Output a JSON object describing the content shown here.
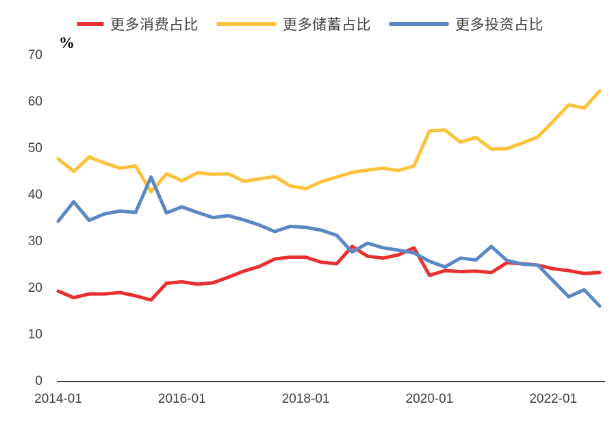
{
  "chart_data": {
    "type": "line",
    "title": "",
    "unit_label": "%",
    "legend_position": "top",
    "grid": false,
    "ylim": [
      0,
      70
    ],
    "y_ticks": [
      0,
      10,
      20,
      30,
      40,
      50,
      60,
      70
    ],
    "x_tick_labels": [
      "2014-01",
      "2016-01",
      "2018-01",
      "2020-01",
      "2022-01"
    ],
    "x_tick_indices": [
      0,
      8,
      16,
      24,
      32
    ],
    "x": [
      "2014-01",
      "2014-04",
      "2014-07",
      "2014-10",
      "2015-01",
      "2015-04",
      "2015-07",
      "2015-10",
      "2016-01",
      "2016-04",
      "2016-07",
      "2016-10",
      "2017-01",
      "2017-04",
      "2017-07",
      "2017-10",
      "2018-01",
      "2018-04",
      "2018-07",
      "2018-10",
      "2019-01",
      "2019-04",
      "2019-07",
      "2019-10",
      "2020-01",
      "2020-04",
      "2020-07",
      "2020-10",
      "2021-01",
      "2021-04",
      "2021-07",
      "2021-10",
      "2022-01",
      "2022-04",
      "2022-07",
      "2022-10"
    ],
    "series": [
      {
        "name": "更多消费占比",
        "color": "#e93030",
        "values": [
          19.4,
          18.0,
          18.8,
          18.8,
          19.1,
          18.4,
          17.5,
          21.1,
          21.4,
          20.9,
          21.2,
          22.4,
          23.7,
          24.7,
          26.3,
          26.7,
          26.7,
          25.6,
          25.3,
          29.0,
          26.9,
          26.5,
          27.2,
          28.7,
          22.8,
          23.8,
          23.6,
          23.7,
          23.4,
          25.5,
          25.3,
          25.0,
          24.2,
          23.8,
          23.2,
          23.4
        ]
      },
      {
        "name": "更多储蓄占比",
        "color": "#fcc23c",
        "values": [
          47.8,
          45.1,
          48.2,
          46.9,
          45.8,
          46.3,
          40.7,
          44.6,
          43.1,
          44.8,
          44.5,
          44.6,
          43.0,
          43.5,
          44.0,
          42.0,
          41.4,
          42.9,
          43.9,
          44.9,
          45.4,
          45.8,
          45.3,
          46.3,
          53.8,
          54.0,
          51.4,
          52.4,
          49.9,
          50.0,
          51.2,
          52.5,
          55.9,
          59.4,
          58.7,
          62.4
        ]
      },
      {
        "name": "更多投资占比",
        "color": "#5b87c5",
        "values": [
          34.4,
          38.6,
          34.6,
          36.0,
          36.6,
          36.3,
          43.9,
          36.2,
          37.5,
          36.3,
          35.2,
          35.6,
          34.7,
          33.6,
          32.2,
          33.3,
          33.1,
          32.5,
          31.4,
          27.8,
          29.7,
          28.7,
          28.2,
          27.6,
          25.8,
          24.6,
          26.5,
          26.1,
          29.0,
          26.0,
          25.2,
          25.0,
          21.6,
          18.2,
          19.7,
          16.2
        ]
      }
    ]
  }
}
